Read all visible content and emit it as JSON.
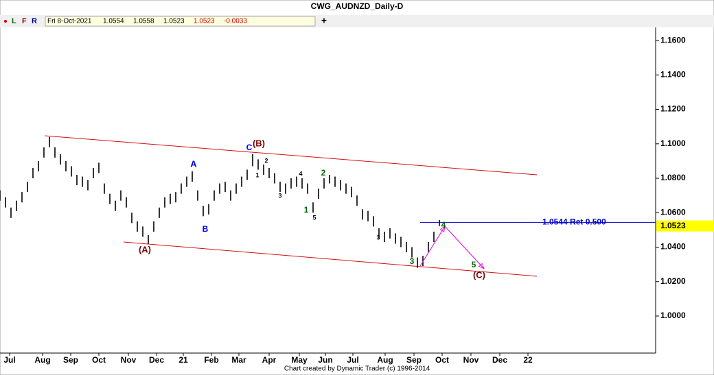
{
  "chart_data": {
    "type": "ohlc",
    "title": "CWG_AUDNZD_Daily-D",
    "toolbar": [
      "L",
      "F",
      "R"
    ],
    "info": [
      "Fri 8-Oct-2021",
      "1.0554",
      "1.0558",
      "1.0523",
      "1.0523",
      "-0.0033"
    ],
    "footer": "Chart created by Dynamic Trader  (c) 1996-2014",
    "color": "#000000",
    "xlim": [
      0,
      477.5
    ],
    "ylim": [
      0.9785,
      1.1676
    ],
    "yticks": [
      {
        "value": 1.0,
        "label": "1.0000"
      },
      {
        "value": 1.02,
        "label": "1.0200"
      },
      {
        "value": 1.04,
        "label": "1.0400"
      },
      {
        "value": 1.06,
        "label": "1.0600"
      },
      {
        "value": 1.08,
        "label": "1.0800"
      },
      {
        "value": 1.1,
        "label": "1.1000"
      },
      {
        "value": 1.12,
        "label": "1.1200"
      },
      {
        "value": 1.14,
        "label": "1.1400"
      },
      {
        "value": 1.16,
        "label": "1.1600"
      }
    ],
    "xticks": [
      {
        "value": 7,
        "label": "Jul"
      },
      {
        "value": 31,
        "label": "Aug"
      },
      {
        "value": 51.5,
        "label": "Sep"
      },
      {
        "value": 72,
        "label": "Oct"
      },
      {
        "value": 93.5,
        "label": "Nov"
      },
      {
        "value": 114,
        "label": "Dec"
      },
      {
        "value": 133.5,
        "label": "21"
      },
      {
        "value": 154,
        "label": "Feb"
      },
      {
        "value": 174,
        "label": "Mar"
      },
      {
        "value": 196,
        "label": "Apr"
      },
      {
        "value": 218,
        "label": "May"
      },
      {
        "value": 237,
        "label": "Jun"
      },
      {
        "value": 257,
        "label": "Jul"
      },
      {
        "value": 280.5,
        "label": "Aug"
      },
      {
        "value": 301.5,
        "label": "Sep"
      },
      {
        "value": 322,
        "label": "Oct"
      },
      {
        "value": 343,
        "label": "Nov"
      },
      {
        "value": 364,
        "label": "Dec"
      },
      {
        "value": 384.5,
        "label": "22"
      }
    ],
    "x": [
      0,
      4,
      8,
      12,
      16,
      20,
      24,
      28,
      32,
      36,
      40,
      44,
      48,
      52,
      56,
      60,
      64,
      68,
      72,
      76,
      80,
      84,
      88,
      92,
      96,
      100,
      104,
      108,
      112,
      116,
      120,
      124,
      128,
      132,
      136,
      140,
      144,
      148,
      152,
      156,
      160,
      164,
      168,
      172,
      176,
      180,
      184,
      188,
      192,
      196,
      200,
      204,
      208,
      212,
      216,
      220,
      224,
      228,
      232,
      236,
      240,
      244,
      248,
      252,
      256,
      260,
      264,
      268,
      272,
      276,
      280,
      284,
      288,
      292,
      296,
      300,
      304,
      308,
      312,
      316,
      320
    ],
    "high": [
      1.073,
      1.069,
      1.063,
      1.067,
      1.072,
      1.078,
      1.086,
      1.09,
      1.098,
      1.104,
      1.098,
      1.094,
      1.09,
      1.087,
      1.082,
      1.081,
      1.079,
      1.086,
      1.089,
      1.077,
      1.071,
      1.067,
      1.073,
      1.069,
      1.06,
      1.055,
      1.052,
      1.047,
      1.055,
      1.063,
      1.069,
      1.071,
      1.072,
      1.077,
      1.081,
      1.084,
      1.073,
      1.064,
      1.065,
      1.073,
      1.077,
      1.078,
      1.073,
      1.077,
      1.081,
      1.085,
      1.094,
      1.091,
      1.088,
      1.086,
      1.083,
      1.078,
      1.077,
      1.08,
      1.081,
      1.08,
      1.077,
      1.066,
      1.074,
      1.08,
      1.082,
      1.081,
      1.079,
      1.077,
      1.075,
      1.07,
      1.062,
      1.061,
      1.058,
      1.051,
      1.049,
      1.051,
      1.048,
      1.046,
      1.043,
      1.04,
      1.034,
      1.035,
      1.043,
      1.049,
      1.0558
    ],
    "low": [
      1.067,
      1.063,
      1.057,
      1.061,
      1.066,
      1.072,
      1.08,
      1.084,
      1.092,
      1.098,
      1.092,
      1.088,
      1.084,
      1.081,
      1.076,
      1.075,
      1.073,
      1.08,
      1.083,
      1.071,
      1.065,
      1.061,
      1.067,
      1.063,
      1.054,
      1.049,
      1.046,
      1.042,
      1.049,
      1.057,
      1.063,
      1.065,
      1.066,
      1.071,
      1.075,
      1.078,
      1.067,
      1.058,
      1.059,
      1.067,
      1.071,
      1.072,
      1.067,
      1.071,
      1.075,
      1.079,
      1.087,
      1.085,
      1.082,
      1.08,
      1.077,
      1.072,
      1.071,
      1.074,
      1.075,
      1.074,
      1.071,
      1.06,
      1.068,
      1.074,
      1.077,
      1.075,
      1.073,
      1.071,
      1.069,
      1.064,
      1.056,
      1.055,
      1.052,
      1.045,
      1.043,
      1.045,
      1.042,
      1.04,
      1.037,
      1.034,
      1.028,
      1.029,
      1.037,
      1.043,
      1.0523
    ],
    "trendlines": [
      {
        "color": "#d01010",
        "x": [
          32.5,
          391
        ],
        "y": [
          1.1047,
          1.082
        ]
      },
      {
        "color": "#d01010",
        "x": [
          90,
          391
        ],
        "y": [
          1.043,
          1.0231
        ]
      }
    ],
    "projection": {
      "color": "#e020e0",
      "x": [
        306,
        324,
        352.5
      ],
      "y": [
        1.0291,
        1.0521,
        1.0275
      ]
    },
    "retracement": {
      "value": 1.0544,
      "label": "1.0544 Ret 0.500",
      "x": 306,
      "color": "#0000cc"
    },
    "last_price": {
      "value": 1.0523,
      "label": "1.0523",
      "color": "#ffff00"
    },
    "annotations": [
      {
        "text": "(A)",
        "color": "#7b0000"
      },
      {
        "text": "(B)",
        "color": "#7b0000"
      },
      {
        "text": "(C)",
        "color": "#7b0000"
      },
      {
        "text": "A",
        "color": "#0000ee"
      },
      {
        "text": "B",
        "color": "#0000ee"
      },
      {
        "text": "C",
        "color": "#0000ee"
      },
      {
        "text": "1",
        "color": "#006400"
      },
      {
        "text": "2",
        "color": "#006400"
      },
      {
        "text": "3",
        "color": "#006400"
      },
      {
        "text": "4",
        "color": "#006400"
      },
      {
        "text": "5",
        "color": "#006400"
      },
      {
        "text": "1",
        "color": "#000000"
      },
      {
        "text": "2",
        "color": "#000000"
      },
      {
        "text": "3",
        "color": "#000000"
      },
      {
        "text": "4",
        "color": "#000000"
      },
      {
        "text": "5",
        "color": "#000000"
      },
      {
        "text": "3",
        "color": "#000000"
      }
    ]
  }
}
